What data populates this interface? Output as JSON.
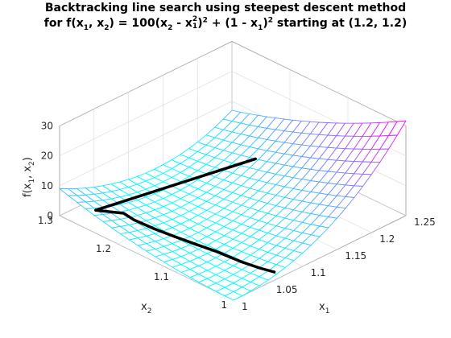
{
  "chart_data": {
    "type": "surface3d",
    "title_line1": "Backtracking line search using steepest descent method",
    "title_line2_parts": {
      "a": "for f(x",
      "s1": "1",
      "b": ", x",
      "s2": "2",
      "c": ") = 100(x",
      "s3": "2",
      "d": " - x",
      "s4": "1",
      "sup4": "2",
      "e": ")",
      "sup2a": "2",
      "f": " + (1 - x",
      "s5": "1",
      "g": ")",
      "sup2b": "2",
      "h": " starting at (1.2, 1.2)"
    },
    "xlabel": {
      "base": "x",
      "sub": "1"
    },
    "ylabel": {
      "base": "x",
      "sub": "2"
    },
    "zlabel": {
      "a": "f(x",
      "s1": "1",
      "b": ", x",
      "s2": "2",
      "c": ")"
    },
    "x_range": [
      1,
      1.25
    ],
    "y_range": [
      1,
      1.3
    ],
    "z_range": [
      0,
      30
    ],
    "x_ticks": [
      "1",
      "1.05",
      "1.1",
      "1.15",
      "1.2",
      "1.25"
    ],
    "y_ticks": [
      "1",
      "1.1",
      "1.2",
      "1.3"
    ],
    "z_ticks": [
      "0",
      "10",
      "20",
      "30"
    ],
    "mesh_divisions": 20,
    "colormap": "cool",
    "color_low": "#00ffff",
    "color_high": "#ff00ff",
    "path_color": "#000000",
    "path": [
      {
        "x1": 1.2,
        "x2": 1.2,
        "f": 5.8
      },
      {
        "x1": 1.008,
        "x2": 1.2472,
        "f": 5.88
      },
      {
        "x1": 1.0392,
        "x2": 1.2362,
        "f": 2.37
      },
      {
        "x1": 1.0405,
        "x2": 1.22,
        "f": 1.55
      },
      {
        "x1": 1.045,
        "x2": 1.19,
        "f": 0.85
      },
      {
        "x1": 1.05,
        "x2": 1.16,
        "f": 0.45
      },
      {
        "x1": 1.055,
        "x2": 1.13,
        "f": 0.18
      },
      {
        "x1": 1.06,
        "x2": 1.1,
        "f": 0.03
      },
      {
        "x1": 1.062,
        "x2": 1.06,
        "f": 0.14
      },
      {
        "x1": 1.063,
        "x2": 1.03,
        "f": 0.82
      },
      {
        "x1": 1.0632,
        "x2": 1.005,
        "f": 1.8
      }
    ]
  }
}
